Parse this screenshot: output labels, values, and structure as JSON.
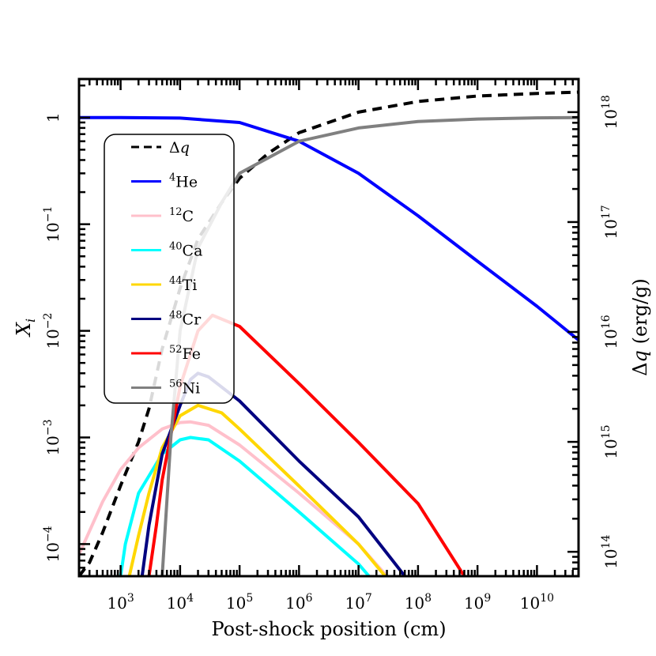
{
  "chart_data": {
    "type": "line",
    "title": "",
    "xlabel": "Post-shock position (cm)",
    "ylabel_left": "X_i",
    "ylabel_right": "Δq (erg/g)",
    "x_scale": "log",
    "y_scale_left": "log",
    "y_scale_right": "log",
    "xlim": [
      200,
      50000000000
    ],
    "ylim_left": [
      5e-05,
      2.3
    ],
    "ylim_right": [
      60000000000000,
      2000000000000000000
    ],
    "x_ticks": [
      {
        "base": "10",
        "exp": "3",
        "value": 1000
      },
      {
        "base": "10",
        "exp": "4",
        "value": 10000
      },
      {
        "base": "10",
        "exp": "5",
        "value": 100000
      },
      {
        "base": "10",
        "exp": "6",
        "value": 1000000
      },
      {
        "base": "10",
        "exp": "7",
        "value": 10000000
      },
      {
        "base": "10",
        "exp": "8",
        "value": 100000000
      },
      {
        "base": "10",
        "exp": "9",
        "value": 1000000000
      },
      {
        "base": "10",
        "exp": "10",
        "value": 10000000000
      }
    ],
    "y_ticks_left": [
      {
        "base": "1",
        "exp": "",
        "value": 1
      },
      {
        "base": "10",
        "exp": "−1",
        "value": 0.1
      },
      {
        "base": "10",
        "exp": "−2",
        "value": 0.01
      },
      {
        "base": "10",
        "exp": "−3",
        "value": 0.001
      },
      {
        "base": "10",
        "exp": "−4",
        "value": 0.0001
      }
    ],
    "y_ticks_right": [
      {
        "base": "10",
        "exp": "18",
        "value": 1000000000000000000
      },
      {
        "base": "10",
        "exp": "17",
        "value": 100000000000000000
      },
      {
        "base": "10",
        "exp": "16",
        "value": 10000000000000000
      },
      {
        "base": "10",
        "exp": "15",
        "value": 1000000000000000
      },
      {
        "base": "10",
        "exp": "14",
        "value": 100000000000000
      }
    ],
    "legend_position": "upper-left",
    "series": [
      {
        "name": "Δq",
        "sym": "Δ",
        "italic": "q",
        "sup": "",
        "axis": "right",
        "color": "#000000",
        "dashed": true,
        "x": [
          200,
          300,
          500,
          1000,
          2000,
          3000,
          5000,
          10000,
          20000,
          50000,
          100000,
          300000,
          1000000,
          10000000,
          100000000,
          1000000000,
          10000000000,
          50000000000
        ],
        "y": [
          60000000000000,
          80000000000000,
          150000000000000,
          400000000000000,
          1000000000000000,
          2000000000000000,
          7000000000000000,
          25000000000000000,
          70000000000000000,
          150000000000000000,
          250000000000000000,
          420000000000000000,
          650000000000000000,
          1000000000000000000,
          1250000000000000000,
          1400000000000000000,
          1480000000000000000,
          1520000000000000000
        ]
      },
      {
        "name": "He",
        "sup": "4",
        "axis": "left",
        "color": "#0000ff",
        "dashed": false,
        "x": [
          200,
          1000,
          10000,
          100000,
          1000000,
          10000000,
          100000000,
          1000000000,
          10000000000,
          50000000000
        ],
        "y": [
          1,
          1,
          0.99,
          0.9,
          0.6,
          0.3,
          0.12,
          0.045,
          0.017,
          0.0082
        ]
      },
      {
        "name": "C",
        "sup": "12",
        "axis": "left",
        "color": "#ffc0cb",
        "dashed": false,
        "x": [
          200,
          500,
          1000,
          2000,
          5000,
          10000,
          15000,
          30000,
          100000,
          1000000,
          10000000,
          30000000
        ],
        "y": [
          8e-05,
          0.00025,
          0.0005,
          0.0008,
          0.0012,
          0.00138,
          0.0014,
          0.0013,
          0.00085,
          0.0003,
          0.0001,
          5e-05
        ]
      },
      {
        "name": "Ca",
        "sup": "40",
        "axis": "left",
        "color": "#00ffff",
        "dashed": false,
        "x": [
          1000,
          1200,
          2000,
          5000,
          10000,
          15000,
          30000,
          100000,
          1000000,
          10000000,
          15000000
        ],
        "y": [
          5e-05,
          0.0001,
          0.0003,
          0.0007,
          0.00095,
          0.001,
          0.00095,
          0.0006,
          0.0002,
          6.5e-05,
          5e-05
        ]
      },
      {
        "name": "Ti",
        "sup": "44",
        "axis": "left",
        "color": "#ffd700",
        "dashed": false,
        "x": [
          1400,
          2000,
          3000,
          5000,
          10000,
          20000,
          50000,
          100000,
          1000000,
          10000000,
          28000000
        ],
        "y": [
          5e-05,
          0.00012,
          0.0003,
          0.0008,
          0.0016,
          0.002,
          0.0017,
          0.0012,
          0.00035,
          0.0001,
          5e-05
        ]
      },
      {
        "name": "Cr",
        "sup": "48",
        "axis": "left",
        "color": "#000080",
        "dashed": false,
        "x": [
          2300,
          3000,
          5000,
          10000,
          15000,
          20000,
          30000,
          100000,
          1000000,
          10000000,
          60000000
        ],
        "y": [
          5e-05,
          0.00015,
          0.0007,
          0.002,
          0.0035,
          0.004,
          0.0037,
          0.0022,
          0.0006,
          0.00018,
          5e-05
        ]
      },
      {
        "name": "Fe",
        "sup": "52",
        "axis": "left",
        "color": "#ff0000",
        "dashed": false,
        "x": [
          3000,
          4000,
          5000,
          10000,
          20000,
          35000,
          100000,
          1000000,
          10000000,
          100000000,
          600000000
        ],
        "y": [
          5e-05,
          0.00015,
          0.0004,
          0.003,
          0.01,
          0.014,
          0.011,
          0.0032,
          0.0009,
          0.00024,
          5e-05
        ]
      },
      {
        "name": "Ni",
        "sup": "56",
        "axis": "left",
        "color": "#808080",
        "dashed": false,
        "x": [
          5000,
          7000,
          10000,
          20000,
          50000,
          100000,
          1000000,
          10000000,
          100000000,
          1000000000,
          10000000000,
          50000000000
        ],
        "y": [
          5e-05,
          0.001,
          0.01,
          0.06,
          0.16,
          0.3,
          0.6,
          0.8,
          0.92,
          0.97,
          0.995,
          1
        ]
      }
    ]
  }
}
